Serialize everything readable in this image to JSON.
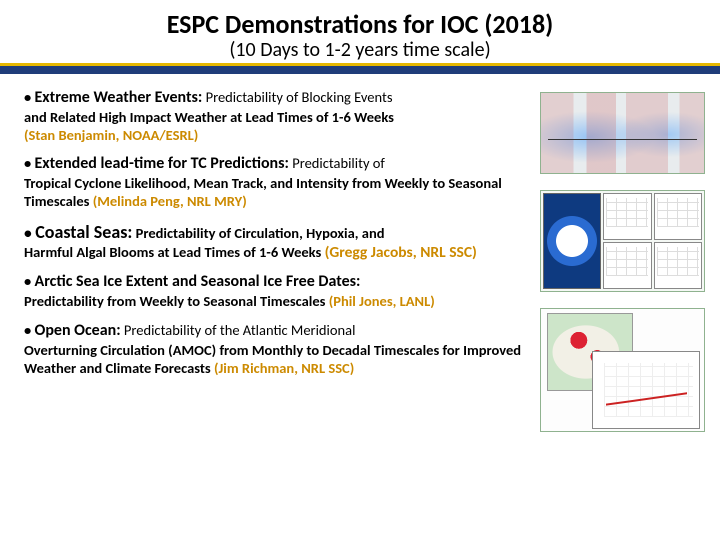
{
  "title": "ESPC Demonstrations for IOC (2018)",
  "subtitle": "(10 Days to  1-2 years time scale)",
  "colors": {
    "divider_main": "#1f3d7a",
    "divider_accent": "#e6b800",
    "attribution": "#cc8a00",
    "text": "#000000",
    "background": "#ffffff"
  },
  "bullets": [
    {
      "lead": "Extreme Weather Events:",
      "sub": " Predictability of Blocking Events",
      "body": "and Related High Impact Weather at Lead Times of 1-6 Weeks",
      "attr": "(Stan Benjamin, NOAA/ESRL)"
    },
    {
      "lead": "Extended lead-time for TC Predictions:",
      "sub": " Predictability of",
      "body": "Tropical Cyclone Likelihood, Mean Track, and Intensity from Weekly to Seasonal Timescales ",
      "attr": "(Melinda Peng, NRL MRY)"
    },
    {
      "lead": "Coastal Seas:",
      "sub": " Predictability of Circulation, Hypoxia, and",
      "body": "Harmful Algal Blooms at Lead Times of 1-6 Weeks ",
      "attr": "(Gregg Jacobs, NRL SSC)"
    },
    {
      "lead": "Arctic Sea Ice Extent and Seasonal Ice Free Dates:",
      "sub": "",
      "body": "Predictability from Weekly to Seasonal Timescales ",
      "attr": "(Phil Jones, LANL)"
    },
    {
      "lead": "Open Ocean:",
      "sub": " Predictability of the Atlantic Meridional",
      "body": "Overturning Circulation (AMOC) from Monthly to Decadal Timescales for Improved Weather and Climate Forecasts ",
      "attr": "(Jim Richman, NRL SSC)"
    }
  ],
  "figures": [
    {
      "name": "blocking-map",
      "desc": "world map with blocking regions"
    },
    {
      "name": "arctic-panels",
      "desc": "arctic polar view with 4 timeseries panels"
    },
    {
      "name": "amoc-composite",
      "desc": "north atlantic map with AMOC timeseries"
    }
  ]
}
